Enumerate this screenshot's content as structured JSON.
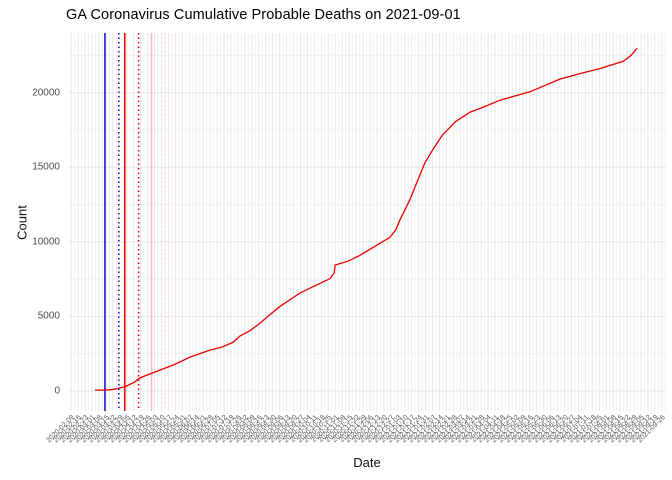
{
  "title": "GA Coronavirus Cumulative Probable Deaths on 2021-09-01",
  "x_axis_title": "Date",
  "y_axis_title": "Count",
  "colors": {
    "line": "#e60000",
    "grid_major": "#e7e7e7",
    "grid_minor": "#f0f0f0",
    "axis_text": "#4d4d4d",
    "title_text": "#000000",
    "blue_event": "#1212d0",
    "red_event": "#e60000",
    "pink_event": "#ffb6c1",
    "pink_light_event": "#ffd4db"
  },
  "y_ticks": [
    {
      "value": 0,
      "label": "0"
    },
    {
      "value": 5000,
      "label": "5000"
    },
    {
      "value": 10000,
      "label": "10000"
    },
    {
      "value": 15000,
      "label": "15000"
    },
    {
      "value": 20000,
      "label": "20000"
    }
  ],
  "y_minor_values": [
    2500,
    7500,
    12500,
    17500,
    22500
  ],
  "x_ticks": [
    "2020-02-09",
    "2020-02-16",
    "2020-02-23",
    "2020-03-01",
    "2020-03-08",
    "2020-03-15",
    "2020-03-22",
    "2020-03-29",
    "2020-04-05",
    "2020-04-12",
    "2020-04-19",
    "2020-04-26",
    "2020-05-03",
    "2020-05-10",
    "2020-05-17",
    "2020-05-24",
    "2020-05-31",
    "2020-06-07",
    "2020-06-14",
    "2020-06-21",
    "2020-06-28",
    "2020-07-05",
    "2020-07-12",
    "2020-07-19",
    "2020-07-26",
    "2020-08-02",
    "2020-08-09",
    "2020-08-16",
    "2020-08-23",
    "2020-08-30",
    "2020-09-06",
    "2020-09-13",
    "2020-09-20",
    "2020-09-27",
    "2020-10-04",
    "2020-10-11",
    "2020-10-18",
    "2020-10-25",
    "2020-11-01",
    "2020-11-08",
    "2020-11-15",
    "2020-11-22",
    "2020-11-29",
    "2020-12-06",
    "2020-12-13",
    "2020-12-20",
    "2020-12-27",
    "2021-01-03",
    "2021-01-10",
    "2021-01-17",
    "2021-01-24",
    "2021-01-31",
    "2021-02-07",
    "2021-02-14",
    "2021-02-21",
    "2021-02-28",
    "2021-03-07",
    "2021-03-14",
    "2021-03-21",
    "2021-03-28",
    "2021-04-04",
    "2021-04-11",
    "2021-04-18",
    "2021-04-25",
    "2021-05-02",
    "2021-05-09",
    "2021-05-16",
    "2021-05-23",
    "2021-05-30",
    "2021-06-06",
    "2021-06-13",
    "2021-06-20",
    "2021-06-27",
    "2021-07-04",
    "2021-07-11",
    "2021-07-18",
    "2021-07-25",
    "2021-08-01",
    "2021-08-08",
    "2021-08-15",
    "2021-08-22",
    "2021-08-29",
    "2021-09-05",
    "2021-09-12",
    "2021-09-19",
    "2021-09-26"
  ],
  "event_lines": [
    {
      "name": "event-blue-solid",
      "date": "2020-03-14",
      "color_key": "blue_event",
      "style": "solid"
    },
    {
      "name": "event-blue-dotted",
      "date": "2020-03-28",
      "color_key": "blue_event",
      "style": "dotted"
    },
    {
      "name": "event-red-solid",
      "date": "2020-04-03",
      "color_key": "red_event",
      "style": "dotted2"
    },
    {
      "name": "event-red-solid2",
      "date": "2020-04-03",
      "color_key": "red_event",
      "style": "solid"
    },
    {
      "name": "event-red-dotted",
      "date": "2020-04-17",
      "color_key": "red_event",
      "style": "dotted"
    },
    {
      "name": "event-pink-solid",
      "date": "2020-04-30",
      "color_key": "pink_event",
      "style": "solid"
    },
    {
      "name": "event-pink-dotted",
      "date": "2020-05-14",
      "color_key": "pink_light_event",
      "style": "dotted"
    }
  ],
  "chart_data": {
    "type": "line",
    "title": "GA Coronavirus Cumulative Probable Deaths on 2021-09-01",
    "xlabel": "Date",
    "ylabel": "Count",
    "x_domain": [
      "2020-03-04",
      "2021-09-01"
    ],
    "ylim": [
      0,
      23000
    ],
    "x_tick_interval": "weekly",
    "grid": "on",
    "legend": "none",
    "series": [
      {
        "name": "cumulative-probable-deaths",
        "color": "#e60000",
        "points": [
          [
            "2020-03-04",
            70
          ],
          [
            "2020-03-14",
            60
          ],
          [
            "2020-03-24",
            120
          ],
          [
            "2020-04-03",
            280
          ],
          [
            "2020-04-13",
            600
          ],
          [
            "2020-04-18",
            870
          ],
          [
            "2020-05-03",
            1270
          ],
          [
            "2020-05-22",
            1740
          ],
          [
            "2020-06-08",
            2280
          ],
          [
            "2020-06-28",
            2750
          ],
          [
            "2020-07-10",
            2950
          ],
          [
            "2020-07-21",
            3260
          ],
          [
            "2020-07-28",
            3690
          ],
          [
            "2020-08-07",
            4040
          ],
          [
            "2020-08-17",
            4540
          ],
          [
            "2020-08-27",
            5100
          ],
          [
            "2020-09-06",
            5650
          ],
          [
            "2020-09-16",
            6100
          ],
          [
            "2020-09-26",
            6550
          ],
          [
            "2020-10-06",
            6880
          ],
          [
            "2020-10-17",
            7220
          ],
          [
            "2020-10-27",
            7550
          ],
          [
            "2020-10-31",
            7930
          ],
          [
            "2020-11-01",
            8450
          ],
          [
            "2020-11-14",
            8700
          ],
          [
            "2020-11-26",
            9100
          ],
          [
            "2020-12-06",
            9500
          ],
          [
            "2020-12-16",
            9900
          ],
          [
            "2020-12-26",
            10300
          ],
          [
            "2021-01-01",
            10800
          ],
          [
            "2021-01-05",
            11460
          ],
          [
            "2021-01-15",
            12800
          ],
          [
            "2021-01-30",
            15260
          ],
          [
            "2021-02-07",
            16150
          ],
          [
            "2021-02-17",
            17160
          ],
          [
            "2021-03-02",
            18050
          ],
          [
            "2021-03-17",
            18700
          ],
          [
            "2021-03-27",
            18950
          ],
          [
            "2021-04-16",
            19500
          ],
          [
            "2021-05-16",
            20060
          ],
          [
            "2021-06-15",
            20900
          ],
          [
            "2021-07-06",
            21290
          ],
          [
            "2021-07-26",
            21620
          ],
          [
            "2021-08-08",
            21900
          ],
          [
            "2021-08-18",
            22100
          ],
          [
            "2021-08-26",
            22500
          ],
          [
            "2021-09-01",
            22980
          ]
        ]
      }
    ]
  }
}
